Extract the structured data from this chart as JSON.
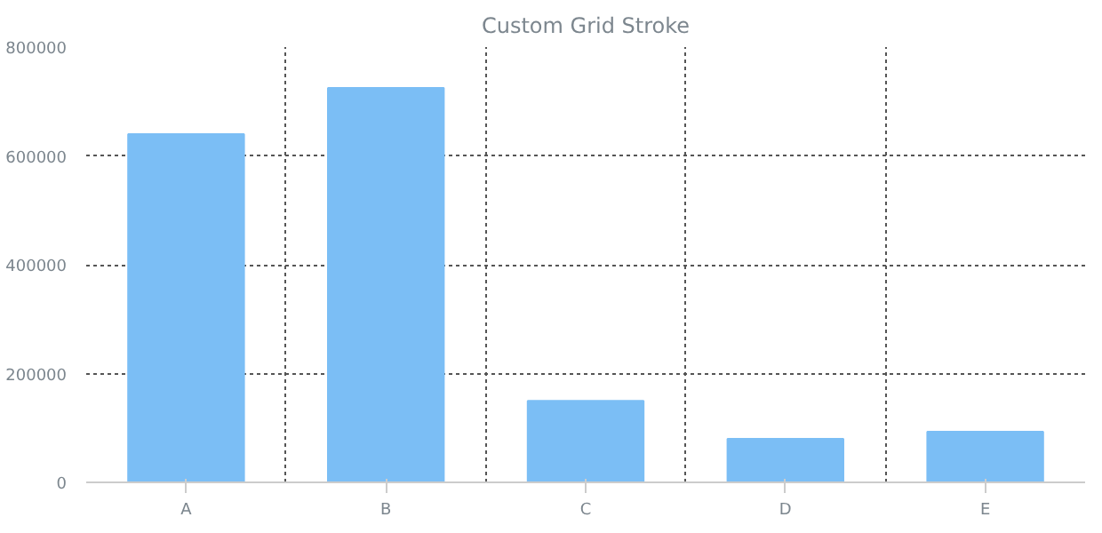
{
  "chart_data": {
    "type": "bar",
    "title": "Custom Grid Stroke",
    "categories": [
      "A",
      "B",
      "C",
      "D",
      "E"
    ],
    "values": [
      640000,
      725000,
      150000,
      80000,
      93000
    ],
    "color": "#7bbef5",
    "ylim": [
      0,
      800000
    ],
    "yticks": [
      0,
      200000,
      400000,
      600000,
      800000
    ],
    "grid": true
  }
}
